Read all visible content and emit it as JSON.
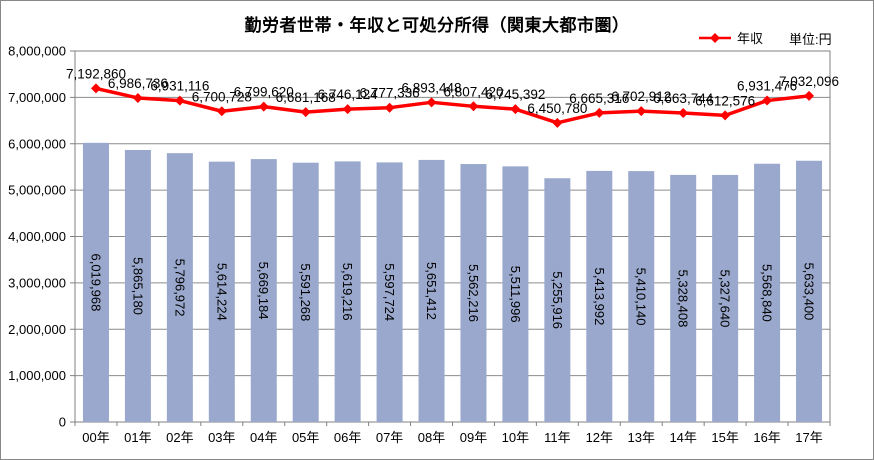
{
  "title": "勤労者世帯・年収と可処分所得（関東大都市圏）",
  "legend": {
    "series_label": "年収",
    "unit_label": "単位:円"
  },
  "chart_data": {
    "type": "bar+line",
    "title": "勤労者世帯・年収と可処分所得（関東大都市圏）",
    "unit": "単位:円",
    "categories": [
      "00年",
      "01年",
      "02年",
      "03年",
      "04年",
      "05年",
      "06年",
      "07年",
      "08年",
      "09年",
      "10年",
      "11年",
      "12年",
      "13年",
      "14年",
      "15年",
      "16年",
      "17年"
    ],
    "series": [
      {
        "name": "",
        "type": "bar",
        "values": [
          6019968,
          5865180,
          5796972,
          5614224,
          5669184,
          5591268,
          5619216,
          5597724,
          5651412,
          5562216,
          5511996,
          5255916,
          5413992,
          5410140,
          5328408,
          5327640,
          5568840,
          5633400
        ]
      },
      {
        "name": "年収",
        "type": "line",
        "values": [
          7192860,
          6986736,
          6931116,
          6700728,
          6799620,
          6681168,
          6746124,
          6777336,
          6893448,
          6807420,
          6745392,
          6450780,
          6665316,
          6702912,
          6663744,
          6612576,
          6931476,
          7032096
        ]
      }
    ],
    "ylim": [
      0,
      8000000
    ],
    "ytick_step": 1000000,
    "grid": true,
    "legend_position": "top-right",
    "number_format": "comma",
    "colors": {
      "bar": "#99a8cc",
      "line": "#ff0000",
      "grid": "#8c8c8c",
      "axis": "#808080",
      "label": "#000000"
    }
  }
}
